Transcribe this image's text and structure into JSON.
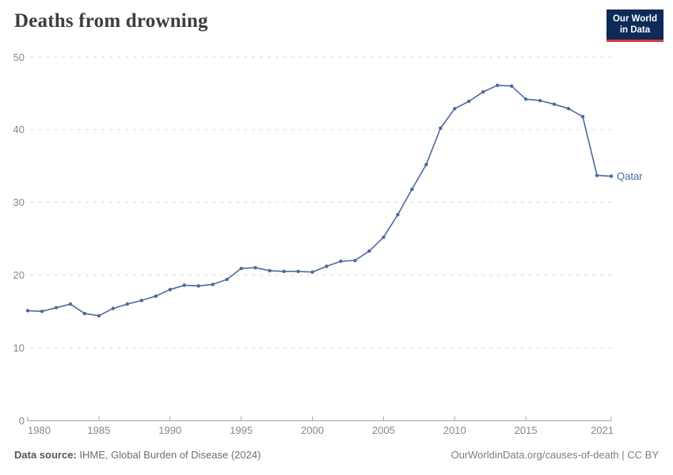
{
  "header": {
    "title": "Deaths from drowning"
  },
  "logo": {
    "line1": "Our World",
    "line2": "in Data",
    "bg_color": "#0d2b56",
    "accent_color": "#dc3a34"
  },
  "footer": {
    "source_label": "Data source:",
    "source_value": " IHME, Global Burden of Disease (2024)",
    "credit": "OurWorldinData.org/causes-of-death | CC BY"
  },
  "colors": {
    "series_blue": "#4c6a9c",
    "gridline": "#dadada",
    "axis": "#a8a8a8",
    "tick_text": "#878787",
    "title_text": "#3d3d3d"
  },
  "chart_data": {
    "type": "line",
    "title": "Deaths from drowning",
    "xlabel": "",
    "ylabel": "",
    "ylim": [
      0,
      50
    ],
    "yticks": [
      0,
      10,
      20,
      30,
      40,
      50
    ],
    "xticks": [
      1980,
      1985,
      1990,
      1995,
      2000,
      2005,
      2010,
      2015,
      2021
    ],
    "grid": "horizontal-dashed",
    "legend_position": "end-of-line-label",
    "x": [
      1980,
      1981,
      1982,
      1983,
      1984,
      1985,
      1986,
      1987,
      1988,
      1989,
      1990,
      1991,
      1992,
      1993,
      1994,
      1995,
      1996,
      1997,
      1998,
      1999,
      2000,
      2001,
      2002,
      2003,
      2004,
      2005,
      2006,
      2007,
      2008,
      2009,
      2010,
      2011,
      2012,
      2013,
      2014,
      2015,
      2016,
      2017,
      2018,
      2019,
      2020,
      2021
    ],
    "series": [
      {
        "name": "Qatar",
        "color": "#4c6a9c",
        "values": [
          15.1,
          15.0,
          15.5,
          16.0,
          14.7,
          14.4,
          15.4,
          16.0,
          16.5,
          17.1,
          18.0,
          18.6,
          18.5,
          18.7,
          19.4,
          20.9,
          21.0,
          20.6,
          20.5,
          20.5,
          20.4,
          21.2,
          21.9,
          22.0,
          23.3,
          25.2,
          28.3,
          31.8,
          35.2,
          40.2,
          42.9,
          43.9,
          45.2,
          46.1,
          46.0,
          44.2,
          44.0,
          43.5,
          42.9,
          41.8,
          33.7,
          33.6
        ]
      }
    ]
  }
}
